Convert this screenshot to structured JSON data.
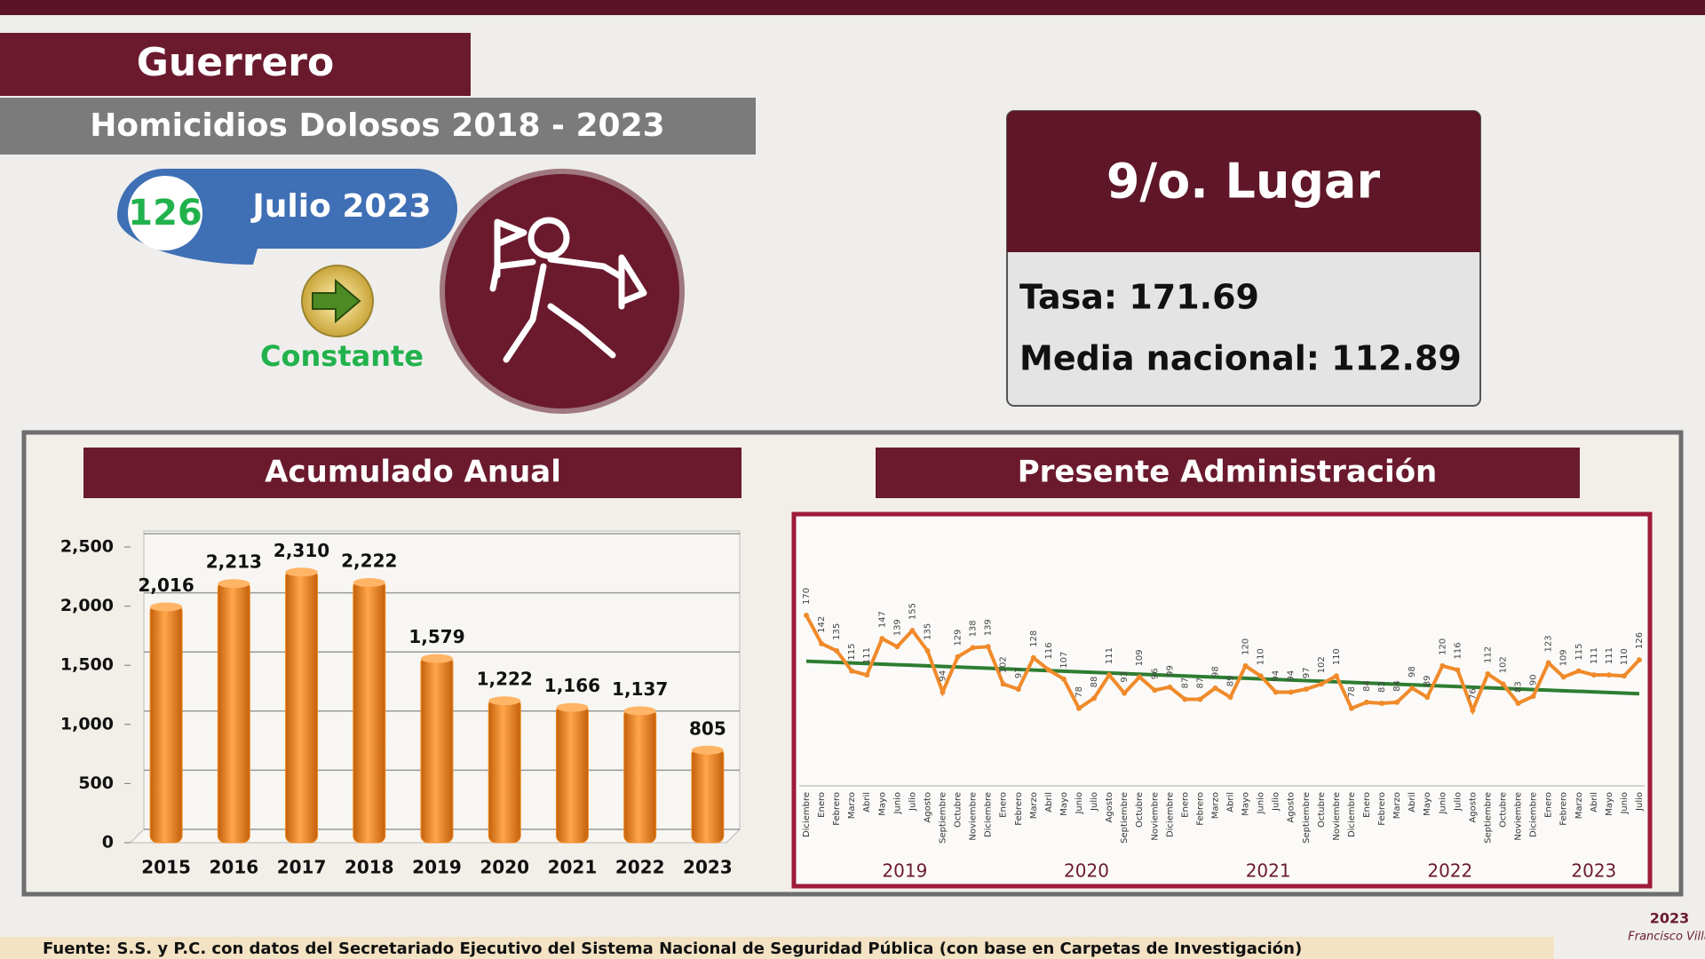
{
  "header": {
    "state": "Guerrero",
    "subtitle": "Homicidios Dolosos 2018 - 2023"
  },
  "current": {
    "value": 126,
    "period": "Julio 2023",
    "trend": "Constante"
  },
  "ranking": {
    "title": "9/o. Lugar",
    "rate": "Tasa: 171.69",
    "national": "Media nacional: 112.89"
  },
  "chart_data": [
    {
      "type": "bar",
      "title": "Acumulado Anual",
      "categories": [
        "2015",
        "2016",
        "2017",
        "2018",
        "2019",
        "2020",
        "2021",
        "2022",
        "2023"
      ],
      "values": [
        2016,
        2213,
        2310,
        2222,
        1579,
        1222,
        1166,
        1137,
        805
      ],
      "value_labels": [
        "2,016",
        "2,213",
        "2,310",
        "2,222",
        "1,579",
        "1,222",
        "1,166",
        "1,137",
        "805"
      ],
      "color": "#f28a1f",
      "ylim": [
        0,
        2500
      ],
      "yticks": [
        0,
        500,
        {
          "value": 1000,
          "label": "1,000"
        },
        {
          "value": 1500,
          "label": "1,500"
        },
        {
          "value": 2000,
          "label": "2,000"
        },
        {
          "value": 2500,
          "label": "2,500"
        }
      ],
      "grid": true
    },
    {
      "type": "line",
      "title": "Presente Administración",
      "categories": [
        "Diciembre",
        "Enero",
        "Febrero",
        "Marzo",
        "Abril",
        "Mayo",
        "Junio",
        "Julio",
        "Agosto",
        "Septiembre",
        "Octubre",
        "Noviembre",
        "Diciembre",
        "Enero",
        "Febrero",
        "Marzo",
        "Abril",
        "Mayo",
        "Junio",
        "Julio",
        "Agosto",
        "Septiembre",
        "Octubre",
        "Noviembre",
        "Diciembre",
        "Enero",
        "Febrero",
        "Marzo",
        "Abril",
        "Mayo",
        "Junio",
        "Julio",
        "Agosto",
        "Septiembre",
        "Octubre",
        "Noviembre",
        "Diciembre",
        "Enero",
        "Febrero",
        "Marzo",
        "Abril",
        "Mayo",
        "Junio",
        "Julio",
        "Agosto",
        "Septiembre",
        "Octubre",
        "Noviembre",
        "Diciembre",
        "Enero",
        "Febrero",
        "Marzo",
        "Abril",
        "Mayo",
        "Junio",
        "Julio"
      ],
      "year_groups": [
        "2019",
        "2020",
        "2021",
        "2022",
        "2023"
      ],
      "values": [
        170,
        142,
        135,
        115,
        111,
        147,
        139,
        155,
        135,
        94,
        129,
        138,
        139,
        102,
        97,
        128,
        116,
        107,
        78,
        88,
        111,
        93,
        109,
        96,
        99,
        87,
        87,
        98,
        89,
        120,
        110,
        94,
        94,
        97,
        102,
        110,
        78,
        84,
        83,
        84,
        98,
        89,
        120,
        116,
        76,
        112,
        102,
        83,
        90,
        123,
        109,
        115,
        111,
        111,
        110,
        126
      ],
      "color": "#f08a2a",
      "trend_color": "#2e7d32"
    }
  ],
  "footer": {
    "source": "Fuente: S.S. y P.C. con datos del Secretariado Ejecutivo del Sistema Nacional de Seguridad Pública (con base en Carpetas de Investigación)",
    "logo_year": "2023",
    "logo_name": "Francisco Villa"
  }
}
